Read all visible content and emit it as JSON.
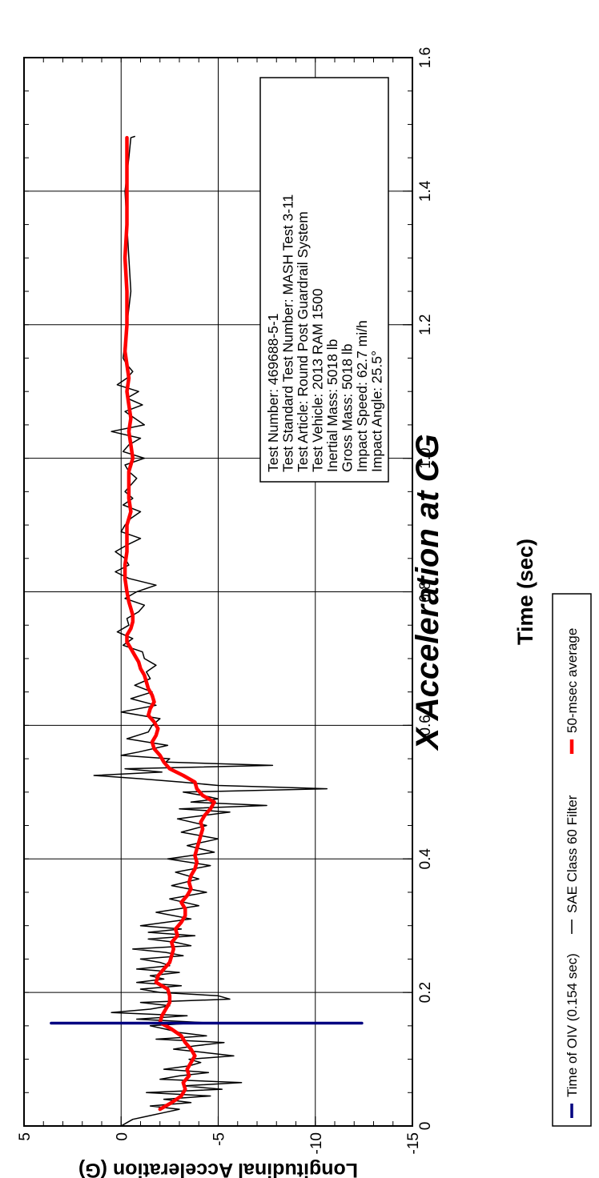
{
  "chart_data": {
    "type": "line",
    "title": "X Acceleration at CG",
    "xlabel": "Time (sec)",
    "ylabel": "Longitudinal Acceleration (G)",
    "xlim": [
      0,
      1.6
    ],
    "ylim": [
      -15,
      5
    ],
    "x_ticks": [
      0,
      0.2,
      0.4,
      0.6,
      0.8,
      1.0,
      1.2,
      1.4,
      1.6
    ],
    "x_tick_labels": [
      "0",
      "0.2",
      "0.4",
      "0.6",
      "0.8",
      "1.0",
      "1.2",
      "1.4",
      "1.6"
    ],
    "y_ticks": [
      -15,
      -10,
      -5,
      0,
      5
    ],
    "y_tick_labels": [
      "-15",
      "-10",
      "-5",
      "0",
      "5"
    ],
    "grid": true,
    "legend_position": "bottom",
    "series": [
      {
        "name": "Time of OIV (0.154 sec)",
        "color": "#000080",
        "style": "vertical-line",
        "x": [
          0.154,
          0.154
        ],
        "y": [
          3.6,
          -12.4
        ]
      },
      {
        "name": "SAE Class 60 Filter",
        "color": "#000000",
        "style": "thin-line",
        "x": [
          0.0,
          0.005,
          0.01,
          0.015,
          0.02,
          0.025,
          0.03,
          0.035,
          0.04,
          0.045,
          0.05,
          0.055,
          0.06,
          0.065,
          0.07,
          0.075,
          0.08,
          0.085,
          0.09,
          0.095,
          0.1,
          0.105,
          0.11,
          0.115,
          0.12,
          0.125,
          0.13,
          0.135,
          0.14,
          0.145,
          0.15,
          0.155,
          0.16,
          0.165,
          0.17,
          0.175,
          0.18,
          0.185,
          0.19,
          0.195,
          0.2,
          0.205,
          0.21,
          0.215,
          0.22,
          0.225,
          0.23,
          0.235,
          0.24,
          0.245,
          0.25,
          0.255,
          0.26,
          0.265,
          0.27,
          0.275,
          0.28,
          0.285,
          0.29,
          0.295,
          0.3,
          0.31,
          0.32,
          0.33,
          0.34,
          0.35,
          0.36,
          0.37,
          0.38,
          0.39,
          0.4,
          0.41,
          0.42,
          0.43,
          0.44,
          0.45,
          0.46,
          0.47,
          0.475,
          0.48,
          0.485,
          0.49,
          0.495,
          0.5,
          0.505,
          0.51,
          0.515,
          0.52,
          0.525,
          0.53,
          0.535,
          0.54,
          0.545,
          0.55,
          0.555,
          0.56,
          0.57,
          0.58,
          0.59,
          0.6,
          0.61,
          0.62,
          0.63,
          0.64,
          0.65,
          0.66,
          0.67,
          0.68,
          0.69,
          0.7,
          0.71,
          0.72,
          0.73,
          0.74,
          0.75,
          0.76,
          0.77,
          0.78,
          0.79,
          0.8,
          0.81,
          0.82,
          0.83,
          0.84,
          0.85,
          0.86,
          0.87,
          0.88,
          0.89,
          0.9,
          0.91,
          0.92,
          0.93,
          0.94,
          0.95,
          0.96,
          0.97,
          0.98,
          0.99,
          1.0,
          1.01,
          1.02,
          1.03,
          1.04,
          1.05,
          1.06,
          1.07,
          1.08,
          1.09,
          1.1,
          1.11,
          1.12,
          1.13,
          1.14,
          1.15,
          1.2,
          1.25,
          1.3,
          1.35,
          1.4,
          1.45,
          1.48,
          1.482
        ],
        "y": [
          0.0,
          -0.3,
          -0.6,
          -1.4,
          -2.2,
          -3.0,
          -1.5,
          -3.6,
          -2.2,
          -4.6,
          -1.3,
          -5.2,
          -3.2,
          -6.2,
          -2.0,
          -3.0,
          -4.5,
          -2.2,
          -3.5,
          -4.1,
          -3.5,
          -5.8,
          -4.3,
          -2.7,
          -3.8,
          -5.3,
          -1.8,
          -4.4,
          -3.0,
          -2.3,
          -1.5,
          -4.2,
          -0.8,
          -3.4,
          0.5,
          -1.5,
          -2.5,
          -1.0,
          -5.6,
          -5.0,
          -2.0,
          -1.0,
          -3.1,
          -0.8,
          -2.2,
          -1.5,
          -3.0,
          -0.8,
          -2.5,
          -2.0,
          -1.0,
          -3.2,
          -2.3,
          -0.6,
          -3.6,
          -2.8,
          -1.4,
          -3.8,
          -1.4,
          -3.1,
          -1.0,
          -3.6,
          -1.8,
          -4.0,
          -2.5,
          -4.4,
          -2.6,
          -4.0,
          -2.8,
          -4.6,
          -2.4,
          -4.8,
          -3.4,
          -5.0,
          -3.1,
          -4.4,
          -2.9,
          -5.6,
          -3.0,
          -7.5,
          -3.6,
          -5.0,
          -4.2,
          -3.2,
          -10.6,
          -5.0,
          -3.1,
          -1.0,
          1.4,
          -2.1,
          -0.2,
          -7.8,
          -2.3,
          -2.5,
          0.0,
          -0.9,
          -2.4,
          -0.3,
          -1.4,
          -1.6,
          -2.0,
          0.0,
          -1.8,
          -0.5,
          -1.6,
          -0.7,
          -1.5,
          -1.3,
          -1.8,
          -1.2,
          -1.1,
          -0.1,
          -0.6,
          0.2,
          -0.4,
          -0.3,
          -0.9,
          -1.2,
          -0.2,
          -0.8,
          -1.8,
          -0.4,
          0.3,
          -0.4,
          -0.2,
          0.3,
          -0.3,
          -1.0,
          0.0,
          -0.2,
          -0.5,
          -1.0,
          -0.1,
          -0.6,
          -0.2,
          -0.5,
          -0.8,
          -0.4,
          -0.2,
          -1.2,
          -0.1,
          -0.4,
          -1.0,
          0.5,
          -1.2,
          -0.7,
          -0.2,
          -1.1,
          -0.3,
          -0.9,
          0.2,
          -0.3,
          -0.6,
          -0.3,
          -0.1,
          -0.3,
          -0.5,
          -0.4,
          -0.3,
          -0.2,
          -0.4,
          -0.5,
          -0.7
        ]
      },
      {
        "name": "50-msec average",
        "color": "#ff0000",
        "style": "thick-line",
        "x": [
          0.025,
          0.035,
          0.045,
          0.055,
          0.065,
          0.075,
          0.085,
          0.095,
          0.105,
          0.115,
          0.125,
          0.135,
          0.145,
          0.155,
          0.165,
          0.175,
          0.185,
          0.195,
          0.205,
          0.215,
          0.225,
          0.235,
          0.245,
          0.255,
          0.265,
          0.275,
          0.285,
          0.295,
          0.305,
          0.315,
          0.325,
          0.335,
          0.345,
          0.355,
          0.365,
          0.375,
          0.385,
          0.395,
          0.405,
          0.415,
          0.425,
          0.435,
          0.445,
          0.455,
          0.465,
          0.475,
          0.485,
          0.495,
          0.505,
          0.515,
          0.525,
          0.535,
          0.545,
          0.555,
          0.565,
          0.575,
          0.585,
          0.595,
          0.605,
          0.615,
          0.625,
          0.635,
          0.645,
          0.655,
          0.665,
          0.675,
          0.685,
          0.695,
          0.705,
          0.715,
          0.725,
          0.735,
          0.745,
          0.755,
          0.765,
          0.775,
          0.785,
          0.8,
          0.82,
          0.84,
          0.86,
          0.88,
          0.9,
          0.92,
          0.94,
          0.96,
          0.98,
          1.0,
          1.02,
          1.04,
          1.06,
          1.08,
          1.1,
          1.12,
          1.14,
          1.16,
          1.2,
          1.25,
          1.3,
          1.35,
          1.4,
          1.45,
          1.48
        ],
        "y": [
          -2.0,
          -2.6,
          -3.1,
          -3.3,
          -3.2,
          -3.5,
          -3.4,
          -3.6,
          -3.8,
          -3.6,
          -3.3,
          -3.1,
          -2.6,
          -2.0,
          -2.1,
          -2.3,
          -2.5,
          -2.5,
          -2.4,
          -1.8,
          -1.9,
          -2.2,
          -2.5,
          -2.6,
          -2.7,
          -2.6,
          -2.9,
          -2.8,
          -3.1,
          -3.3,
          -3.3,
          -3.1,
          -3.4,
          -3.6,
          -3.5,
          -3.6,
          -3.8,
          -3.9,
          -3.8,
          -3.9,
          -4.0,
          -4.1,
          -4.2,
          -4.1,
          -4.3,
          -4.6,
          -4.8,
          -4.2,
          -3.9,
          -3.8,
          -3.2,
          -2.5,
          -2.2,
          -2.0,
          -1.7,
          -1.6,
          -1.8,
          -1.9,
          -1.7,
          -1.4,
          -1.5,
          -1.7,
          -1.6,
          -1.4,
          -1.3,
          -1.2,
          -1.0,
          -0.9,
          -0.7,
          -0.5,
          -0.3,
          -0.3,
          -0.5,
          -0.6,
          -0.6,
          -0.5,
          -0.4,
          -0.3,
          -0.2,
          -0.2,
          -0.3,
          -0.3,
          -0.3,
          -0.5,
          -0.4,
          -0.4,
          -0.4,
          -0.6,
          -0.5,
          -0.4,
          -0.5,
          -0.4,
          -0.3,
          -0.4,
          -0.3,
          -0.2,
          -0.3,
          -0.3,
          -0.2,
          -0.3,
          -0.3,
          -0.3,
          -0.3
        ]
      }
    ],
    "annotation": [
      "Test Number: 469688-5-1",
      "Test Standard Test Number: MASH Test 3-11",
      "Test Article: Round Post Guardrail System",
      "Test Vehicle: 2013 RAM 1500",
      "Inertial Mass: 5018 lb",
      "Gross Mass: 5018 lb",
      "Impact Speed: 62.7 mi/h",
      "Impact Angle: 25.5°"
    ],
    "legend": [
      "Time of OIV (0.154 sec)",
      "SAE Class 60 Filter",
      "50-msec average"
    ]
  }
}
